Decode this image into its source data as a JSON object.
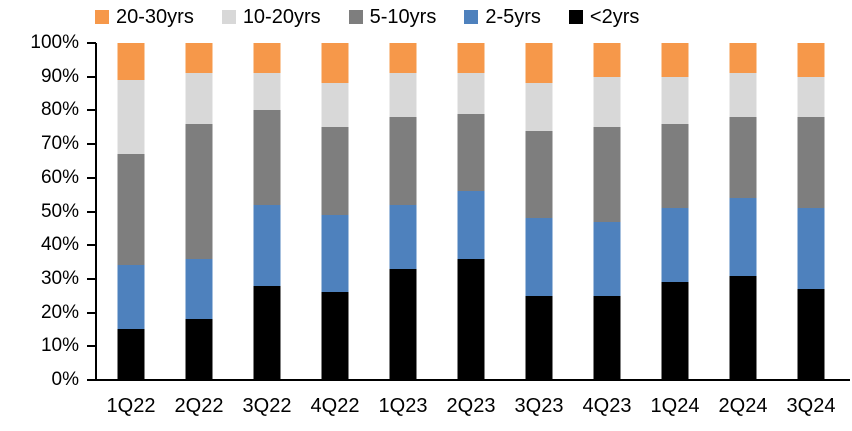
{
  "chart_data": {
    "type": "bar",
    "subtype": "stacked-100-percent",
    "title": "",
    "xlabel": "",
    "ylabel": "",
    "grid": false,
    "categories": [
      "1Q22",
      "2Q22",
      "3Q22",
      "4Q22",
      "1Q23",
      "2Q23",
      "3Q23",
      "4Q23",
      "1Q24",
      "2Q24",
      "3Q24"
    ],
    "series": [
      {
        "name": "<2yrs",
        "color": "#000000",
        "values": [
          15,
          18,
          28,
          26,
          33,
          36,
          25,
          25,
          29,
          31,
          27
        ]
      },
      {
        "name": "2-5yrs",
        "color": "#4E81BD",
        "values": [
          19,
          18,
          24,
          23,
          19,
          20,
          23,
          22,
          22,
          23,
          24
        ]
      },
      {
        "name": "5-10yrs",
        "color": "#7E7E7E",
        "values": [
          33,
          40,
          28,
          26,
          26,
          23,
          26,
          28,
          25,
          24,
          27
        ]
      },
      {
        "name": "10-20yrs",
        "color": "#D8D8D8",
        "values": [
          22,
          15,
          11,
          13,
          13,
          12,
          14,
          15,
          14,
          13,
          12
        ]
      },
      {
        "name": "20-30yrs",
        "color": "#F6984A",
        "values": [
          11,
          9,
          9,
          12,
          9,
          9,
          12,
          10,
          10,
          9,
          10
        ]
      }
    ],
    "y_axis": {
      "min": 0,
      "max": 100,
      "tick_step": 10,
      "tick_suffix": "%"
    },
    "legend": {
      "position": "top",
      "order": [
        "20-30yrs",
        "10-20yrs",
        "5-10yrs",
        "2-5yrs",
        "<2yrs"
      ]
    }
  }
}
